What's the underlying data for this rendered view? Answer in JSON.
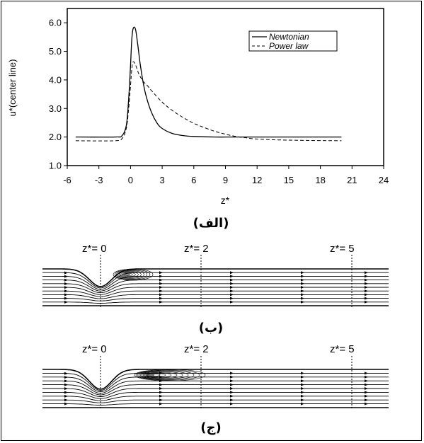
{
  "chart_data": [
    {
      "type": "line",
      "ylabel": "u*(center line)",
      "xlabel": "z*",
      "xlim": [
        -6,
        24
      ],
      "ylim": [
        1.0,
        6.5
      ],
      "x_ticks": [
        "-6",
        "-3",
        "0",
        "3",
        "6",
        "9",
        "12",
        "15",
        "18",
        "21",
        "24"
      ],
      "y_ticks": [
        "1.0",
        "2.0",
        "3.0",
        "4.0",
        "5.0",
        "6.0"
      ],
      "legend_position": "top-right",
      "series": [
        {
          "name": "Newtonian",
          "style": "solid",
          "x": [
            -5.2,
            -1.5,
            -0.8,
            -0.4,
            -0.2,
            0.0,
            0.1,
            0.2,
            0.35,
            0.5,
            0.7,
            0.9,
            1.2,
            1.5,
            2.0,
            2.5,
            3.0,
            4.0,
            5.0,
            6.0,
            8.0,
            10.0,
            14.0,
            20.0
          ],
          "y": [
            2.0,
            2.0,
            2.05,
            2.4,
            3.2,
            4.5,
            5.3,
            5.72,
            5.85,
            5.72,
            5.2,
            4.6,
            3.9,
            3.4,
            2.85,
            2.5,
            2.3,
            2.12,
            2.05,
            2.02,
            2.0,
            2.0,
            2.0,
            2.0
          ]
        },
        {
          "name": "Power law",
          "style": "dashed",
          "x": [
            -5.2,
            -1.5,
            -0.8,
            -0.4,
            -0.2,
            0.0,
            0.1,
            0.2,
            0.35,
            0.5,
            0.8,
            1.2,
            1.6,
            2.0,
            3.0,
            4.0,
            5.0,
            6.0,
            7.0,
            8.0,
            9.0,
            10.0,
            11.0,
            12.0,
            14.0,
            17.0,
            20.0
          ],
          "y": [
            1.87,
            1.87,
            1.95,
            2.3,
            2.9,
            3.8,
            4.3,
            4.6,
            4.62,
            4.5,
            4.2,
            3.95,
            3.8,
            3.62,
            3.22,
            2.92,
            2.68,
            2.48,
            2.33,
            2.2,
            2.1,
            2.02,
            1.97,
            1.93,
            1.9,
            1.88,
            1.87
          ]
        }
      ]
    }
  ],
  "captions": {
    "a": "(الف)",
    "b": "(ب)",
    "c": "(ج)"
  },
  "markers": {
    "z0": "z*= 0",
    "z2": "z*= 2",
    "z5": "z*= 5"
  }
}
